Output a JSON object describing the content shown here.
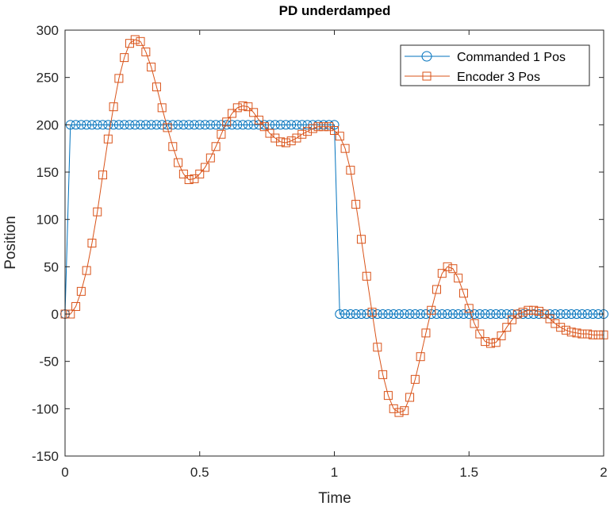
{
  "chart_data": {
    "type": "line",
    "title": "PD underdamped",
    "xlabel": "Time",
    "ylabel": "Position",
    "xlim": [
      0,
      2
    ],
    "ylim": [
      -150,
      300
    ],
    "xticks": [
      0,
      0.5,
      1,
      1.5,
      2
    ],
    "xtick_labels": [
      "0",
      "0.5",
      "1",
      "1.5",
      "2"
    ],
    "yticks": [
      -150,
      -100,
      -50,
      0,
      50,
      100,
      150,
      200,
      250,
      300
    ],
    "ytick_labels": [
      "-150",
      "-100",
      "-50",
      "0",
      "50",
      "100",
      "150",
      "200",
      "250",
      "300"
    ],
    "grid": false,
    "legend_position": "top-right",
    "series": [
      {
        "name": "Commanded 1 Pos",
        "color": "#0072BD",
        "marker": "circle",
        "x": [
          0,
          0.02,
          0.04,
          0.06,
          0.08,
          0.1,
          0.12,
          0.14,
          0.16,
          0.18,
          0.2,
          0.22,
          0.24,
          0.26,
          0.28,
          0.3,
          0.32,
          0.34,
          0.36,
          0.38,
          0.4,
          0.42,
          0.44,
          0.46,
          0.48,
          0.5,
          0.52,
          0.54,
          0.56,
          0.58,
          0.6,
          0.62,
          0.64,
          0.66,
          0.68,
          0.7,
          0.72,
          0.74,
          0.76,
          0.78,
          0.8,
          0.82,
          0.84,
          0.86,
          0.88,
          0.9,
          0.92,
          0.94,
          0.96,
          0.98,
          1.0,
          1.02,
          1.04,
          1.06,
          1.08,
          1.1,
          1.12,
          1.14,
          1.16,
          1.18,
          1.2,
          1.22,
          1.24,
          1.26,
          1.28,
          1.3,
          1.32,
          1.34,
          1.36,
          1.38,
          1.4,
          1.42,
          1.44,
          1.46,
          1.48,
          1.5,
          1.52,
          1.54,
          1.56,
          1.58,
          1.6,
          1.62,
          1.64,
          1.66,
          1.68,
          1.7,
          1.72,
          1.74,
          1.76,
          1.78,
          1.8,
          1.82,
          1.84,
          1.86,
          1.88,
          1.9,
          1.92,
          1.94,
          1.96,
          1.98,
          2.0
        ],
        "y": [
          0,
          200,
          200,
          200,
          200,
          200,
          200,
          200,
          200,
          200,
          200,
          200,
          200,
          200,
          200,
          200,
          200,
          200,
          200,
          200,
          200,
          200,
          200,
          200,
          200,
          200,
          200,
          200,
          200,
          200,
          200,
          200,
          200,
          200,
          200,
          200,
          200,
          200,
          200,
          200,
          200,
          200,
          200,
          200,
          200,
          200,
          200,
          200,
          200,
          200,
          200,
          0,
          0,
          0,
          0,
          0,
          0,
          0,
          0,
          0,
          0,
          0,
          0,
          0,
          0,
          0,
          0,
          0,
          0,
          0,
          0,
          0,
          0,
          0,
          0,
          0,
          0,
          0,
          0,
          0,
          0,
          0,
          0,
          0,
          0,
          0,
          0,
          0,
          0,
          0,
          0,
          0,
          0,
          0,
          0,
          0,
          0,
          0,
          0,
          0,
          0
        ]
      },
      {
        "name": "Encoder 3 Pos",
        "color": "#D95319",
        "marker": "square",
        "x": [
          0,
          0.02,
          0.04,
          0.06,
          0.08,
          0.1,
          0.12,
          0.14,
          0.16,
          0.18,
          0.2,
          0.22,
          0.24,
          0.26,
          0.28,
          0.3,
          0.32,
          0.34,
          0.36,
          0.38,
          0.4,
          0.42,
          0.44,
          0.46,
          0.48,
          0.5,
          0.52,
          0.54,
          0.56,
          0.58,
          0.6,
          0.62,
          0.64,
          0.66,
          0.68,
          0.7,
          0.72,
          0.74,
          0.76,
          0.78,
          0.8,
          0.82,
          0.84,
          0.86,
          0.88,
          0.9,
          0.92,
          0.94,
          0.96,
          0.98,
          1.0,
          1.02,
          1.04,
          1.06,
          1.08,
          1.1,
          1.12,
          1.14,
          1.16,
          1.18,
          1.2,
          1.22,
          1.24,
          1.26,
          1.28,
          1.3,
          1.32,
          1.34,
          1.36,
          1.38,
          1.4,
          1.42,
          1.44,
          1.46,
          1.48,
          1.5,
          1.52,
          1.54,
          1.56,
          1.58,
          1.6,
          1.62,
          1.64,
          1.66,
          1.68,
          1.7,
          1.72,
          1.74,
          1.76,
          1.78,
          1.8,
          1.82,
          1.84,
          1.86,
          1.88,
          1.9,
          1.92,
          1.94,
          1.96,
          1.98,
          2.0
        ],
        "y": [
          0,
          0,
          8,
          24,
          46,
          75,
          108,
          147,
          185,
          219,
          249,
          271,
          286,
          290,
          288,
          277,
          261,
          240,
          218,
          197,
          177,
          160,
          148,
          142,
          143,
          148,
          155,
          165,
          177,
          190,
          203,
          212,
          218,
          220,
          219,
          213,
          205,
          198,
          191,
          186,
          182,
          181,
          183,
          186,
          190,
          193,
          196,
          198,
          198,
          198,
          194,
          188,
          175,
          152,
          116,
          79,
          40,
          2,
          -35,
          -64,
          -86,
          -100,
          -104,
          -102,
          -88,
          -69,
          -45,
          -20,
          4,
          26,
          43,
          50,
          48,
          38,
          22,
          6,
          -10,
          -21,
          -29,
          -31,
          -30,
          -23,
          -14,
          -6,
          0,
          2,
          4,
          4,
          3,
          0,
          -5,
          -10,
          -14,
          -17,
          -19,
          -20,
          -21,
          -21,
          -22,
          -22,
          -22
        ]
      }
    ]
  }
}
